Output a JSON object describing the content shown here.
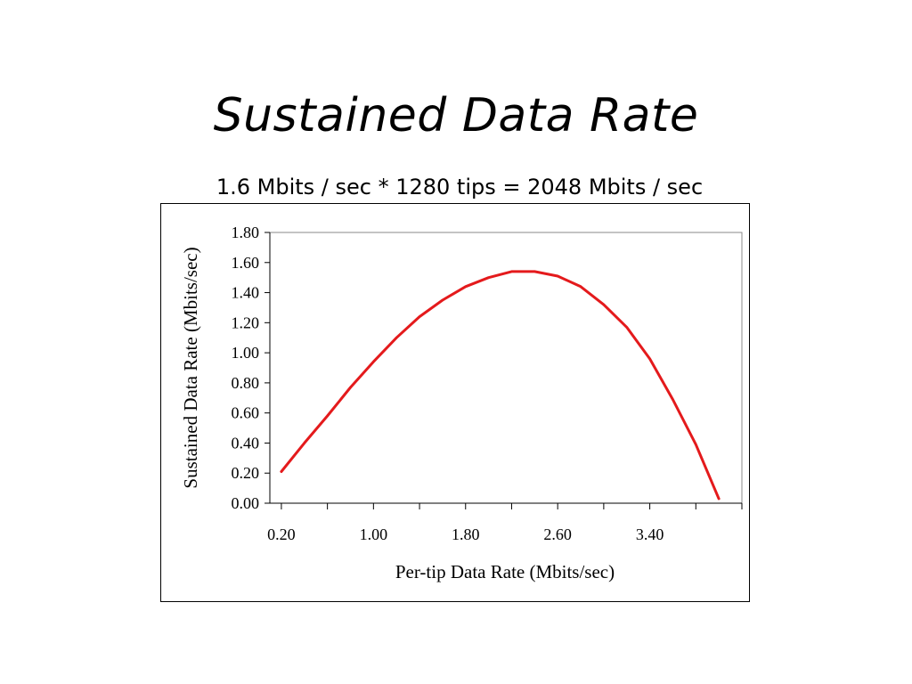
{
  "slide": {
    "title": "Sustained Data Rate",
    "subtitle": "1.6 Mbits / sec * 1280 tips = 2048 Mbits / sec"
  },
  "chart_data": {
    "type": "line",
    "title": "",
    "xlabel": "Per-tip Data Rate (Mbits/sec)",
    "ylabel": "Sustained Data Rate (Mbits/sec)",
    "xlim": [
      0.1,
      4.2
    ],
    "ylim": [
      0,
      1.8
    ],
    "x_tick_values": [
      0.2,
      0.6,
      1.0,
      1.4,
      1.8,
      2.2,
      2.6,
      3.0,
      3.4,
      3.8,
      4.2
    ],
    "x_tick_labels": [
      "0.20",
      "1.00",
      "1.80",
      "2.60",
      "3.40"
    ],
    "x_tick_label_values": [
      0.2,
      1.0,
      1.8,
      2.6,
      3.4
    ],
    "y_tick_values": [
      0,
      0.2,
      0.4,
      0.6,
      0.8,
      1.0,
      1.2,
      1.4,
      1.6,
      1.8
    ],
    "y_tick_labels": [
      "0.00",
      "0.20",
      "0.40",
      "0.60",
      "0.80",
      "1.00",
      "1.20",
      "1.40",
      "1.60",
      "1.80"
    ],
    "grid": false,
    "legend": "none",
    "series": [
      {
        "color": "#e41a1c",
        "x": [
          0.2,
          0.4,
          0.6,
          0.8,
          1.0,
          1.2,
          1.4,
          1.6,
          1.8,
          2.0,
          2.2,
          2.4,
          2.6,
          2.8,
          3.0,
          3.2,
          3.4,
          3.6,
          3.8,
          4.0
        ],
        "y": [
          0.21,
          0.4,
          0.58,
          0.77,
          0.94,
          1.1,
          1.24,
          1.35,
          1.44,
          1.5,
          1.54,
          1.54,
          1.51,
          1.44,
          1.32,
          1.17,
          0.96,
          0.69,
          0.39,
          0.03
        ]
      }
    ]
  }
}
